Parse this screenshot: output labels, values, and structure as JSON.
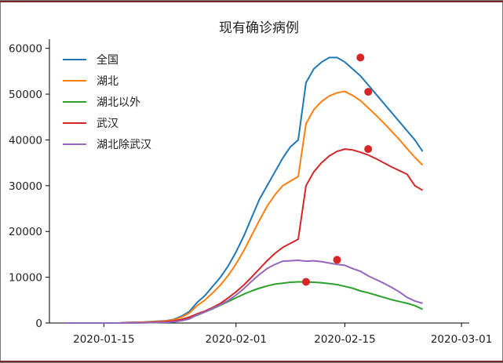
{
  "chart_data": {
    "type": "line",
    "title": "现有确诊病例",
    "xlabel": "",
    "ylabel": "",
    "x_start": "2020-01-10",
    "x_end": "2020-02-28",
    "xlim": [
      "2020-01-08",
      "2020-03-02"
    ],
    "ylim": [
      0,
      62000
    ],
    "xticks": [
      "2020-01-15",
      "2020-02-01",
      "2020-02-15",
      "2020-03-01"
    ],
    "yticks": [
      0,
      10000,
      20000,
      30000,
      40000,
      50000,
      60000
    ],
    "grid": false,
    "legend_position": "top-left",
    "series": [
      {
        "name": "全国",
        "color": "#1f77b4",
        "values": [
          0,
          0,
          0,
          0,
          0,
          0,
          0,
          0,
          100,
          150,
          200,
          300,
          400,
          500,
          800,
          1500,
          2500,
          4500,
          6000,
          8000,
          10000,
          12500,
          15500,
          19000,
          23000,
          27000,
          30000,
          33000,
          36000,
          38500,
          40000,
          52500,
          55500,
          57000,
          58000,
          58000,
          57000,
          55500,
          54000,
          52000,
          50000,
          48000,
          46000,
          44000,
          42000,
          40000,
          37500
        ],
        "marker_x": "2020-02-17",
        "marker_value": 58000
      },
      {
        "name": "湖北",
        "color": "#ff7f0e",
        "values": [
          0,
          0,
          0,
          0,
          0,
          0,
          0,
          0,
          80,
          120,
          170,
          250,
          350,
          450,
          700,
          1300,
          2200,
          3800,
          5000,
          6600,
          8300,
          10400,
          12900,
          15800,
          19100,
          22400,
          25500,
          28000,
          30000,
          31000,
          32000,
          43500,
          46600,
          48400,
          49600,
          50300,
          50600,
          49700,
          48600,
          47000,
          45400,
          43700,
          41900,
          40100,
          38100,
          36200,
          34500
        ],
        "marker_x": "2020-02-18",
        "marker_value": 50500
      },
      {
        "name": "湖北以外",
        "color": "#2ca02c",
        "values": [
          0,
          0,
          0,
          0,
          0,
          0,
          0,
          0,
          20,
          30,
          50,
          80,
          120,
          200,
          400,
          700,
          1100,
          1700,
          2400,
          3100,
          3900,
          4700,
          5500,
          6300,
          7000,
          7600,
          8100,
          8500,
          8700,
          8900,
          9000,
          8950,
          8900,
          8800,
          8600,
          8400,
          8000,
          7600,
          7000,
          6600,
          6100,
          5600,
          5100,
          4700,
          4300,
          3800,
          3000
        ],
        "marker_x": "2020-02-10",
        "marker_value": 9000
      },
      {
        "name": "武汉",
        "color": "#d62728",
        "values": [
          0,
          0,
          0,
          0,
          0,
          0,
          0,
          0,
          50,
          80,
          110,
          160,
          220,
          300,
          450,
          800,
          1300,
          2000,
          2600,
          3400,
          4300,
          5500,
          6800,
          8300,
          10000,
          11800,
          13600,
          15200,
          16500,
          17400,
          18300,
          30000,
          33000,
          35000,
          36500,
          37500,
          38000,
          37800,
          37300,
          36700,
          35900,
          35000,
          34100,
          33300,
          32500,
          30000,
          29000
        ],
        "marker_x": "2020-02-18",
        "marker_value": 38000
      },
      {
        "name": "湖北除武汉",
        "color": "#9467bd",
        "values": [
          0,
          0,
          0,
          0,
          0,
          0,
          0,
          0,
          30,
          40,
          60,
          90,
          130,
          150,
          250,
          500,
          900,
          1800,
          2400,
          3200,
          4000,
          4900,
          6100,
          7500,
          9100,
          10600,
          11900,
          12800,
          13500,
          13600,
          13700,
          13500,
          13600,
          13400,
          13100,
          12800,
          12600,
          11900,
          11300,
          10300,
          9500,
          8700,
          7800,
          6800,
          5600,
          4800,
          4300
        ],
        "marker_x": "2020-02-14",
        "marker_value": 13800
      }
    ]
  }
}
